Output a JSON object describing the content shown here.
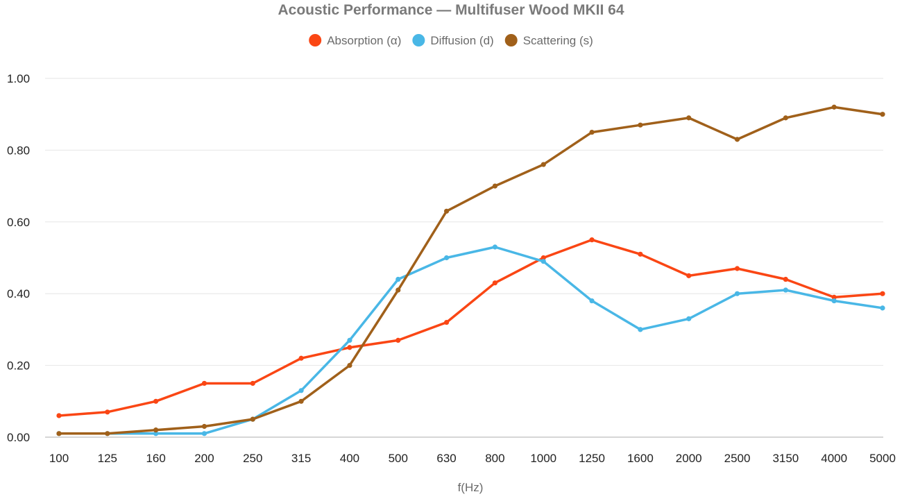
{
  "chart_data": {
    "type": "line",
    "title": "Acoustic Performance — Multifuser Wood MKII 64",
    "xlabel": "f(Hz)",
    "ylabel": "",
    "ylim": [
      0,
      1
    ],
    "yticks": [
      "0.00",
      "0.20",
      "0.40",
      "0.60",
      "0.80",
      "1.00"
    ],
    "grid": true,
    "legend_position": "top-center",
    "categories": [
      "100",
      "125",
      "160",
      "200",
      "250",
      "315",
      "400",
      "500",
      "630",
      "800",
      "1000",
      "1250",
      "1600",
      "2000",
      "2500",
      "3150",
      "4000",
      "5000"
    ],
    "series": [
      {
        "name": "Absorption (α)",
        "color": "#fa4614",
        "values": [
          0.06,
          0.07,
          0.1,
          0.15,
          0.15,
          0.22,
          0.25,
          0.27,
          0.32,
          0.43,
          0.5,
          0.55,
          0.51,
          0.45,
          0.47,
          0.44,
          0.39,
          0.4
        ]
      },
      {
        "name": "Diffusion (d)",
        "color": "#49b7e6",
        "values": [
          0.01,
          0.01,
          0.01,
          0.01,
          0.05,
          0.13,
          0.27,
          0.44,
          0.5,
          0.53,
          0.49,
          0.38,
          0.3,
          0.33,
          0.4,
          0.41,
          0.38,
          0.36
        ]
      },
      {
        "name": "Scattering (s)",
        "color": "#a0601a",
        "values": [
          0.01,
          0.01,
          0.02,
          0.03,
          0.05,
          0.1,
          0.2,
          0.41,
          0.63,
          0.7,
          0.76,
          0.85,
          0.87,
          0.89,
          0.83,
          0.89,
          0.92,
          0.9
        ]
      }
    ]
  }
}
